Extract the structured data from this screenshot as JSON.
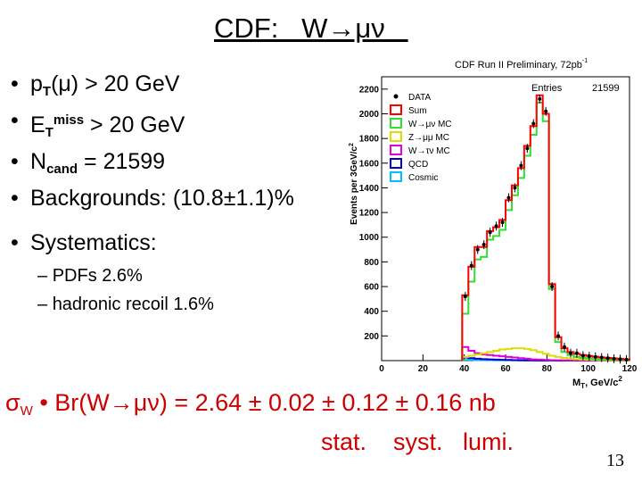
{
  "slide": {
    "title": "CDF:   W→μν   ",
    "bullets": {
      "pt_pre": "p",
      "pt_sub": "T",
      "pt_post": "(μ) > 20 GeV",
      "et_pre": "E",
      "et_sub": "T",
      "et_sup": "miss",
      "et_post": " > 20 GeV",
      "n_pre": "N",
      "n_sub": "cand",
      "n_post": " = 21599",
      "bkg": "Backgrounds: (10.8±1.1)%"
    },
    "systematics": {
      "label": "Systematics:",
      "items": [
        "PDFs  2.6%",
        "hadronic recoil 1.6%"
      ]
    },
    "result": {
      "pre": "σ",
      "sub": "W",
      "post": " • Br(W→μν) = 2.64 ± 0.02 ± 0.12 ± 0.16 nb",
      "labels": "stat.    syst.   lumi."
    },
    "page_number": "13"
  },
  "chart_data": {
    "type": "histogram",
    "title": "CDF Run II Preliminary, 72pb",
    "title_sup": "-1",
    "entries_label": "Entries",
    "entries_value": "21599",
    "xlabel": "M",
    "xlabel_sub": "T",
    "xlabel_unit": ", GeV/c",
    "xlabel_sup": "2",
    "ylabel": "Events per 3GeV/c",
    "ylabel_sup": "2",
    "xlim": [
      0,
      120
    ],
    "ylim": [
      0,
      2300
    ],
    "xticks": [
      0,
      20,
      40,
      60,
      80,
      100,
      120
    ],
    "yticks": [
      200,
      400,
      600,
      800,
      1000,
      1200,
      1400,
      1600,
      1800,
      2000,
      2200
    ],
    "bin_width": 3,
    "legend_position": "top-right",
    "legend": [
      {
        "label": "DATA",
        "color": "#000000",
        "marker": "point"
      },
      {
        "label": "Sum",
        "color": "#ff0000"
      },
      {
        "label": "W→μν MC",
        "color": "#33dd33"
      },
      {
        "label": "Z→μμ MC",
        "color": "#dddd00"
      },
      {
        "label": "W→τν MC",
        "color": "#dd00dd"
      },
      {
        "label": "QCD",
        "color": "#0000cc"
      },
      {
        "label": "Cosmic",
        "color": "#00bbff"
      }
    ],
    "bin_edges": [
      39,
      42,
      45,
      48,
      51,
      54,
      57,
      60,
      63,
      66,
      69,
      72,
      75,
      78,
      81,
      84,
      87,
      90,
      93,
      96,
      99,
      102,
      105,
      108,
      111,
      114,
      117,
      120
    ],
    "series": [
      {
        "name": "Sum",
        "values": [
          530,
          760,
          920,
          920,
          1050,
          1080,
          1140,
          1300,
          1420,
          1560,
          1740,
          1900,
          2150,
          2000,
          620,
          190,
          100,
          70,
          55,
          45,
          38,
          32,
          26,
          22,
          18,
          14,
          10
        ]
      },
      {
        "name": "W→μν MC",
        "values": [
          380,
          640,
          820,
          840,
          980,
          1010,
          1060,
          1220,
          1340,
          1480,
          1660,
          1830,
          2090,
          1940,
          580,
          150,
          70,
          45,
          30,
          22,
          16,
          12,
          9,
          7,
          5,
          4,
          3
        ]
      },
      {
        "name": "Z→μμ MC",
        "values": [
          30,
          40,
          50,
          60,
          70,
          80,
          90,
          95,
          100,
          100,
          95,
          85,
          70,
          55,
          40,
          30,
          22,
          16,
          12,
          9,
          7,
          5,
          4,
          3,
          2,
          2,
          1
        ]
      },
      {
        "name": "W→τν MC",
        "values": [
          110,
          80,
          60,
          50,
          45,
          40,
          35,
          30,
          25,
          20,
          15,
          10,
          8,
          6,
          4,
          3,
          2,
          1,
          1,
          0,
          0,
          0,
          0,
          0,
          0,
          0,
          0
        ]
      },
      {
        "name": "QCD",
        "values": [
          25,
          20,
          15,
          12,
          10,
          8,
          6,
          5,
          4,
          3,
          2,
          2,
          1,
          1,
          1,
          0,
          0,
          0,
          0,
          0,
          0,
          0,
          0,
          0,
          0,
          0,
          0
        ]
      },
      {
        "name": "Cosmic",
        "values": [
          5,
          5,
          4,
          4,
          4,
          3,
          3,
          3,
          3,
          2,
          2,
          2,
          2,
          2,
          2,
          2,
          1,
          1,
          1,
          1,
          1,
          1,
          1,
          1,
          1,
          1,
          1
        ]
      }
    ],
    "data_points": {
      "x": [
        40.5,
        43.5,
        46.5,
        49.5,
        52.5,
        55.5,
        58.5,
        61.5,
        64.5,
        67.5,
        70.5,
        73.5,
        76.5,
        79.5,
        82.5,
        85.5,
        88.5,
        91.5,
        94.5,
        97.5,
        100.5,
        103.5,
        106.5,
        109.5,
        112.5,
        115.5,
        118.5
      ],
      "y": [
        520,
        770,
        900,
        940,
        1040,
        1090,
        1120,
        1320,
        1400,
        1580,
        1720,
        1920,
        2120,
        2020,
        600,
        200,
        110,
        60,
        60,
        40,
        35,
        30,
        25,
        20,
        15,
        12,
        8
      ]
    }
  }
}
